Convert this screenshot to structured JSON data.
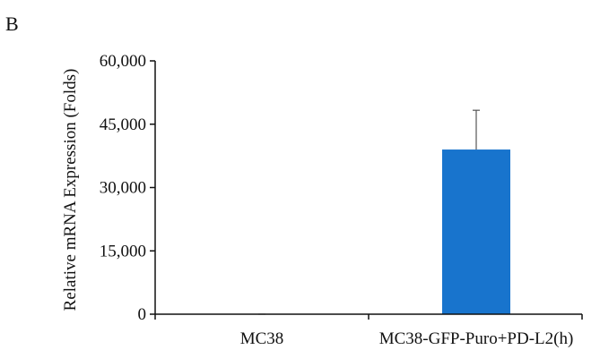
{
  "panel_label": "B",
  "chart_data": {
    "type": "bar",
    "categories": [
      "MC38",
      "MC38-GFP-Puro+PD-L2(h)"
    ],
    "values": [
      1,
      39000
    ],
    "error": [
      0,
      9300
    ],
    "ylabel": "Relative mRNA Expression (Folds)",
    "xlabel": "",
    "ylim": [
      0,
      60000
    ],
    "yticks": [
      0,
      15000,
      30000,
      45000,
      60000
    ],
    "ytick_labels": [
      "0",
      "15,000",
      "30,000",
      "45,000",
      "60,000"
    ],
    "grid": false,
    "legend": "none",
    "colors": {
      "bar": "#1874cd",
      "axis": "#111111",
      "error_bar": "#555555"
    }
  }
}
